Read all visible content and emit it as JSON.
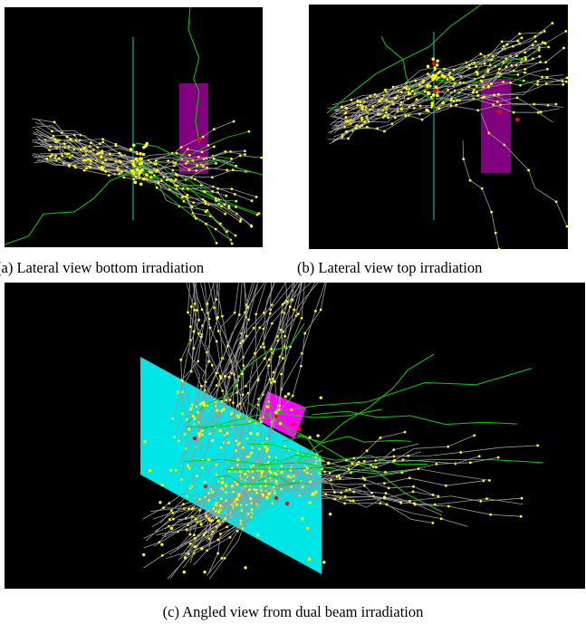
{
  "figure": {
    "panels": [
      {
        "id": "a",
        "caption": "(a) Lateral view bottom irradiation",
        "background": "#000000",
        "plate_color": "#008080",
        "target_color": "#800080"
      },
      {
        "id": "b",
        "caption": "(b) Lateral view top irradiation",
        "background": "#000000",
        "plate_color": "#008080",
        "target_color": "#800080"
      },
      {
        "id": "c",
        "caption": "(c) Angled view from dual beam irradiation",
        "background": "#000000",
        "plate_color": "#00e5e5",
        "target_color": "#ff00ff"
      }
    ],
    "colors": {
      "track_gray": "#9a9a9a",
      "track_yellow": "#ffff00",
      "track_green": "#00d000",
      "hit_red": "#ff0000"
    }
  }
}
